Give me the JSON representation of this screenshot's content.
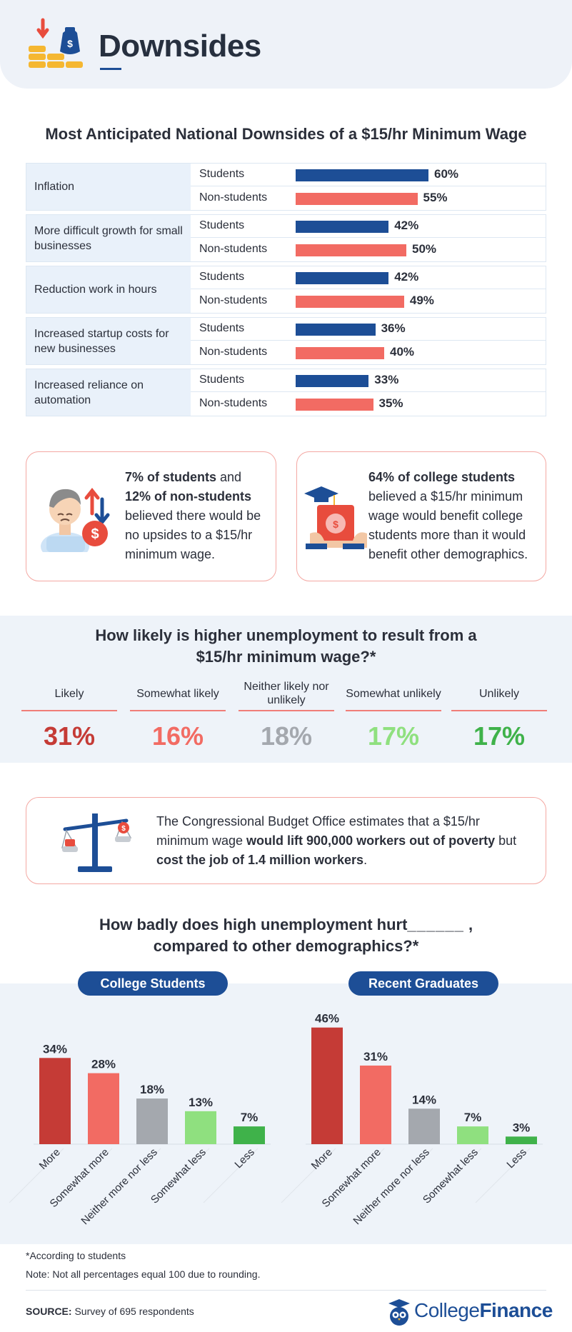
{
  "header": {
    "title": "Downsides"
  },
  "section1": {
    "title": "Most Anticipated National Downsides of a $15/hr Minimum Wage"
  },
  "colors": {
    "students": "#1d4e96",
    "non_students": "#f26b63",
    "likely": "#c53b36",
    "somewhat_likely": "#f26b63",
    "neither": "#a4a8ae",
    "somewhat_unlikely": "#8fe07f",
    "unlikely": "#3fb24a"
  },
  "callouts": {
    "left": {
      "bold1": "7% of students",
      "text1": " and",
      "bold2": "12% of non-students",
      "text2": "believed there would be no upsides to a $15/hr minimum wage."
    },
    "right": {
      "bold1": "64% of college students",
      "text1": "believed a $15/hr minimum wage would benefit college students more than it would benefit other demographics."
    },
    "cbo": {
      "text1": "The Congressional Budget Office estimates that a $15/hr minimum wage ",
      "bold1": "would lift 900,000 workers out of poverty",
      "text2": " but ",
      "bold2": "cost the job of 1.4 million workers",
      "text3": "."
    }
  },
  "section2": {
    "title_line1": "How likely is higher unemployment to result from a",
    "title_line2": "$15/hr minimum wage?*"
  },
  "section3": {
    "title_line1": "How badly does high unemployment hurt",
    "title_blank": "______",
    "title_comma": " ,",
    "title_line2": "compared to other demographics?*"
  },
  "footnotes": {
    "note1": "*According to students",
    "note2": "Note: Not all percentages equal 100 due to rounding.",
    "source_label": "SOURCE:",
    "source_text": " Survey of 695 respondents"
  },
  "logo": {
    "part1": "College",
    "part2": "Finance"
  },
  "chart_data": [
    {
      "type": "bar",
      "orientation": "horizontal",
      "title": "Most Anticipated National Downsides of a $15/hr Minimum Wage",
      "categories": [
        "Inflation",
        "More difficult growth for small businesses",
        "Reduction work in hours",
        "Increased startup costs for new businesses",
        "Increased reliance on automation"
      ],
      "series": [
        {
          "name": "Students",
          "values": [
            60,
            42,
            42,
            36,
            33
          ]
        },
        {
          "name": "Non-students",
          "values": [
            55,
            50,
            49,
            40,
            35
          ]
        }
      ],
      "value_suffix": "%"
    },
    {
      "type": "table",
      "title": "How likely is higher unemployment to result from a $15/hr minimum wage?*",
      "categories": [
        "Likely",
        "Somewhat likely",
        "Neither likely nor unlikely",
        "Somewhat unlikely",
        "Unlikely"
      ],
      "values": [
        31,
        16,
        18,
        17,
        17
      ],
      "value_suffix": "%"
    },
    {
      "type": "bar",
      "title": "College Students",
      "categories": [
        "More",
        "Somewhat more",
        "Neither more nor less",
        "Somewhat less",
        "Less"
      ],
      "values": [
        34,
        28,
        18,
        13,
        7
      ],
      "value_suffix": "%"
    },
    {
      "type": "bar",
      "title": "Recent Graduates",
      "categories": [
        "More",
        "Somewhat more",
        "Neither more nor less",
        "Somewhat less",
        "Less"
      ],
      "values": [
        46,
        31,
        14,
        7,
        3
      ],
      "value_suffix": "%"
    }
  ]
}
